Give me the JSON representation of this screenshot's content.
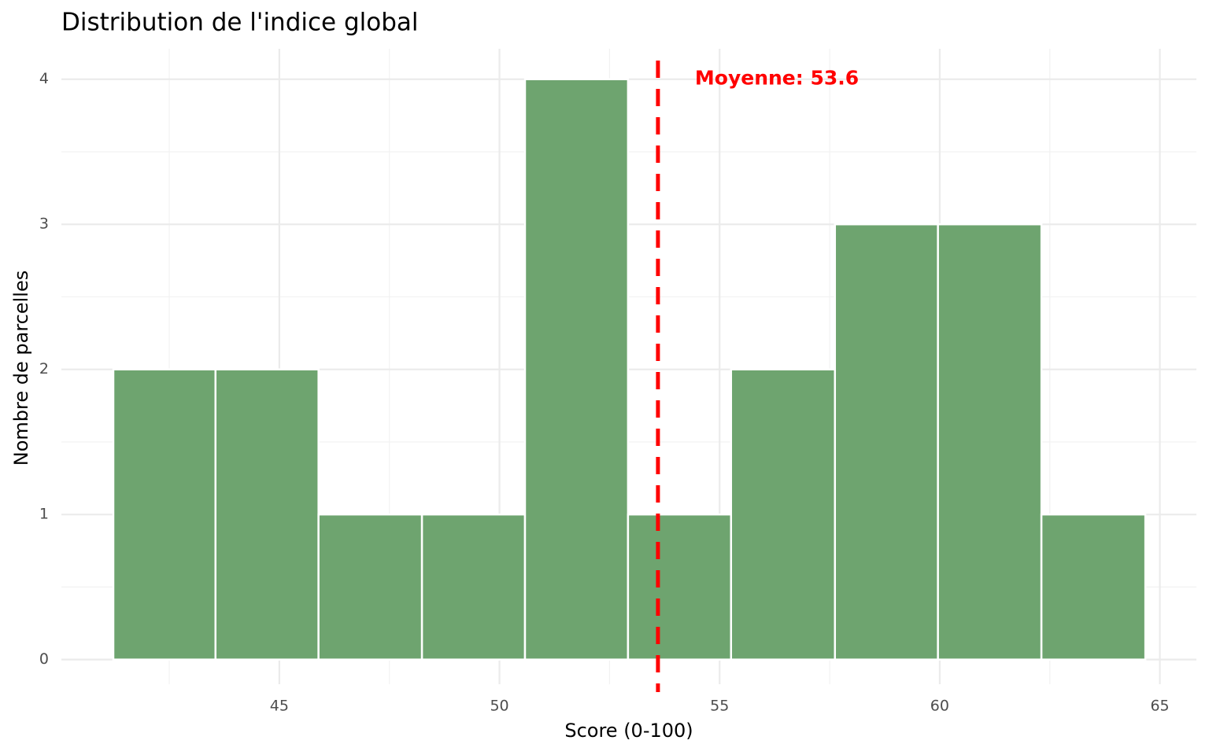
{
  "chart_data": {
    "type": "histogram",
    "title": "Distribution de l'indice global",
    "x_label": "Score (0-100)",
    "y_label": "Nombre de parcelles",
    "bins": [
      41.23,
      43.55,
      45.89,
      48.24,
      50.58,
      52.92,
      55.26,
      57.62,
      59.96,
      62.31,
      64.67
    ],
    "values": [
      2,
      2,
      1,
      1,
      4,
      1,
      2,
      3,
      3,
      1
    ],
    "color": "#6ea46f",
    "xlim": [
      40.05,
      65.83
    ],
    "ylim": [
      -0.17,
      4.21
    ],
    "xticks": [
      45,
      50,
      55,
      60,
      65
    ],
    "yticks": [
      0,
      1,
      2,
      3,
      4
    ],
    "x_minor_ticks": [
      42.5,
      47.5,
      52.5,
      57.5,
      62.5
    ],
    "y_minor_ticks": [
      0.5,
      1.5,
      2.5,
      3.5
    ],
    "grid": true,
    "mean": {
      "value": 53.6,
      "label": "Moyenne: 53.6",
      "color": "#ff0000"
    }
  }
}
